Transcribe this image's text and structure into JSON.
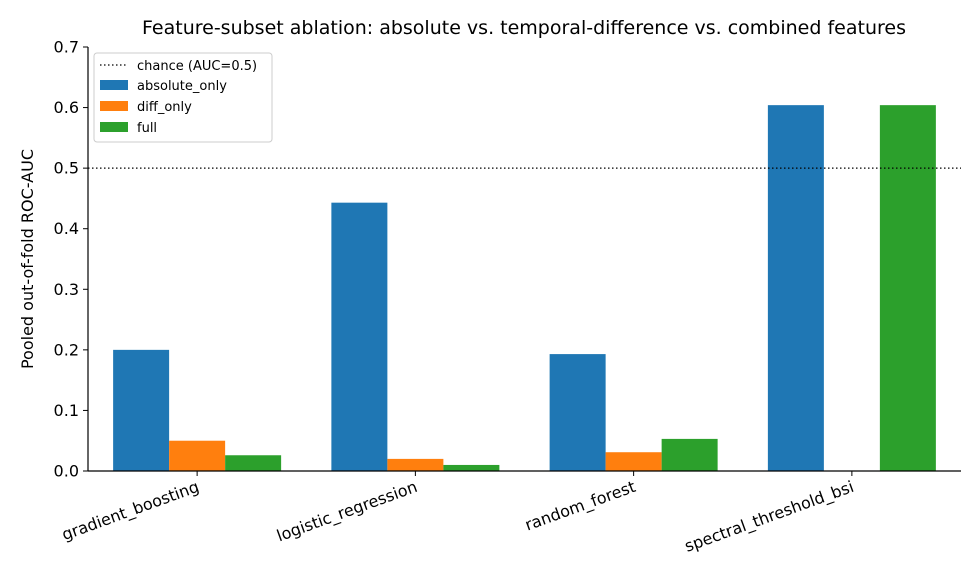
{
  "chart_data": {
    "type": "bar",
    "title": "Feature-subset ablation: absolute vs. temporal-difference vs. combined features",
    "xlabel": "",
    "ylabel": "Pooled out-of-fold ROC-AUC",
    "ylim": [
      0,
      0.7
    ],
    "yticks": [
      "0.0",
      "0.1",
      "0.2",
      "0.3",
      "0.4",
      "0.5",
      "0.6",
      "0.7"
    ],
    "categories": [
      "gradient_boosting",
      "logistic_regression",
      "random_forest",
      "spectral_threshold_bsi"
    ],
    "series": [
      {
        "name": "absolute_only",
        "color": "#1f77b4",
        "values": [
          0.2,
          0.443,
          0.193,
          0.604
        ]
      },
      {
        "name": "diff_only",
        "color": "#ff7f0e",
        "values": [
          0.05,
          0.02,
          0.031,
          0.0
        ]
      },
      {
        "name": "full",
        "color": "#2ca02c",
        "values": [
          0.026,
          0.01,
          0.053,
          0.604
        ]
      }
    ],
    "reference_line": {
      "label": "chance (AUC=0.5)",
      "value": 0.5,
      "style": "dotted"
    },
    "grid": false,
    "legend_position": "top-left"
  }
}
